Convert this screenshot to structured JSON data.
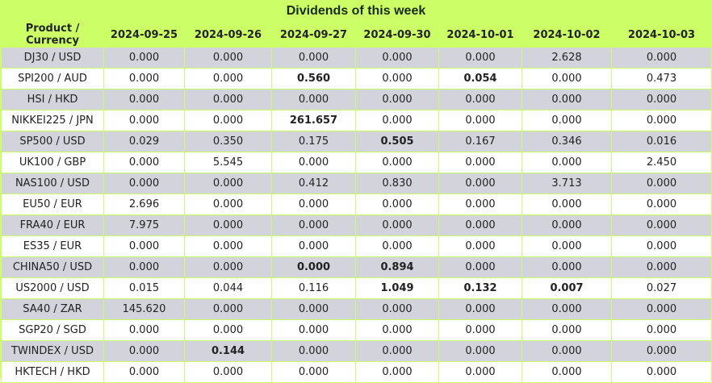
{
  "title": "Dividends of this week",
  "header": {
    "product": "Product / Currency",
    "dates": [
      "2024-09-25",
      "2024-09-26",
      "2024-09-27",
      "2024-09-30",
      "2024-10-01",
      "2024-10-02",
      "2024-10-03"
    ]
  },
  "rows": [
    {
      "product": "DJ30 / USD",
      "values": [
        "0.000",
        "0.000",
        "0.000",
        "0.000",
        "0.000",
        "2.628",
        "0.000"
      ],
      "bold": [
        false,
        false,
        false,
        false,
        false,
        false,
        false
      ]
    },
    {
      "product": "SPI200 / AUD",
      "values": [
        "0.000",
        "0.000",
        "0.560",
        "0.000",
        "0.054",
        "0.000",
        "0.473"
      ],
      "bold": [
        false,
        false,
        true,
        false,
        true,
        false,
        false
      ]
    },
    {
      "product": "HSI / HKD",
      "values": [
        "0.000",
        "0.000",
        "0.000",
        "0.000",
        "0.000",
        "0.000",
        "0.000"
      ],
      "bold": [
        false,
        false,
        false,
        false,
        false,
        false,
        false
      ]
    },
    {
      "product": "NIKKEI225 / JPN",
      "values": [
        "0.000",
        "0.000",
        "261.657",
        "0.000",
        "0.000",
        "0.000",
        "0.000"
      ],
      "bold": [
        false,
        false,
        true,
        false,
        false,
        false,
        false
      ]
    },
    {
      "product": "SP500 / USD",
      "values": [
        "0.029",
        "0.350",
        "0.175",
        "0.505",
        "0.167",
        "0.346",
        "0.016"
      ],
      "bold": [
        false,
        false,
        false,
        true,
        false,
        false,
        false
      ]
    },
    {
      "product": "UK100 / GBP",
      "values": [
        "0.000",
        "5.545",
        "0.000",
        "0.000",
        "0.000",
        "0.000",
        "2.450"
      ],
      "bold": [
        false,
        false,
        false,
        false,
        false,
        false,
        false
      ]
    },
    {
      "product": "NAS100 / USD",
      "values": [
        "0.000",
        "0.000",
        "0.412",
        "0.830",
        "0.000",
        "3.713",
        "0.000"
      ],
      "bold": [
        false,
        false,
        false,
        false,
        false,
        false,
        false
      ]
    },
    {
      "product": "EU50 / EUR",
      "values": [
        "2.696",
        "0.000",
        "0.000",
        "0.000",
        "0.000",
        "0.000",
        "0.000"
      ],
      "bold": [
        false,
        false,
        false,
        false,
        false,
        false,
        false
      ]
    },
    {
      "product": "FRA40 / EUR",
      "values": [
        "7.975",
        "0.000",
        "0.000",
        "0.000",
        "0.000",
        "0.000",
        "0.000"
      ],
      "bold": [
        false,
        false,
        false,
        false,
        false,
        false,
        false
      ]
    },
    {
      "product": "ES35 / EUR",
      "values": [
        "0.000",
        "0.000",
        "0.000",
        "0.000",
        "0.000",
        "0.000",
        "0.000"
      ],
      "bold": [
        false,
        false,
        false,
        false,
        false,
        false,
        false
      ]
    },
    {
      "product": "CHINA50 / USD",
      "values": [
        "0.000",
        "0.000",
        "0.000",
        "0.894",
        "0.000",
        "0.000",
        "0.000"
      ],
      "bold": [
        false,
        false,
        true,
        true,
        false,
        false,
        false
      ]
    },
    {
      "product": "US2000 / USD",
      "values": [
        "0.015",
        "0.044",
        "0.116",
        "1.049",
        "0.132",
        "0.007",
        "0.027"
      ],
      "bold": [
        false,
        false,
        false,
        true,
        true,
        true,
        false
      ]
    },
    {
      "product": "SA40 / ZAR",
      "values": [
        "145.620",
        "0.000",
        "0.000",
        "0.000",
        "0.000",
        "0.000",
        "0.000"
      ],
      "bold": [
        false,
        false,
        false,
        false,
        false,
        false,
        false
      ]
    },
    {
      "product": "SGP20 / SGD",
      "values": [
        "0.000",
        "0.000",
        "0.000",
        "0.000",
        "0.000",
        "0.000",
        "0.000"
      ],
      "bold": [
        false,
        false,
        false,
        false,
        false,
        false,
        false
      ]
    },
    {
      "product": "TWINDEX / USD",
      "values": [
        "0.000",
        "0.144",
        "0.000",
        "0.000",
        "0.000",
        "0.000",
        "0.000"
      ],
      "bold": [
        false,
        true,
        false,
        false,
        false,
        false,
        false
      ]
    },
    {
      "product": "HKTECH / HKD",
      "values": [
        "0.000",
        "0.000",
        "0.000",
        "0.000",
        "0.000",
        "0.000",
        "0.000"
      ],
      "bold": [
        false,
        false,
        false,
        false,
        false,
        false,
        false
      ]
    }
  ]
}
